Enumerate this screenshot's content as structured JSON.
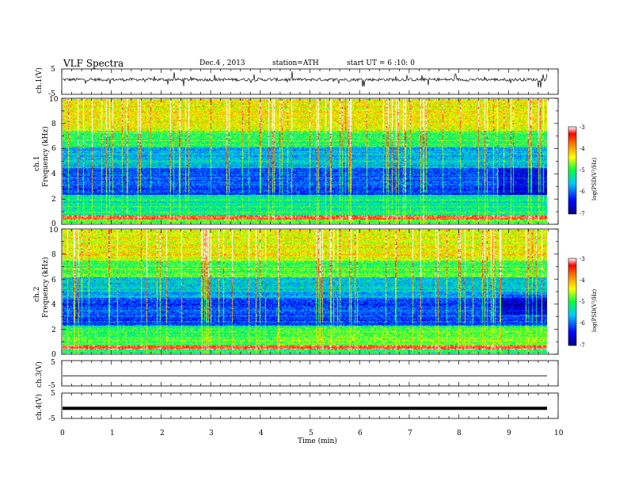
{
  "header": {
    "title": "VLF  Spectra",
    "date": "Dec.4  , 2013",
    "station": "station=ATH",
    "start": "start  UT  =   6  :10: 0"
  },
  "chart_data": [
    {
      "type": "line",
      "panel": "ch1-waveform",
      "ylabel": "ch.1(V)",
      "ylim": [
        -5,
        5
      ],
      "yticks": [
        "5",
        "-5"
      ],
      "xlim": [
        0,
        10
      ],
      "baseline_v": 0.8,
      "noise_v": 1.2
    },
    {
      "type": "heatmap",
      "panel": "ch1-spectrogram",
      "ylabel": [
        "ch.1",
        "Frequency  (kHz)"
      ],
      "ylim": [
        0,
        10
      ],
      "yticks": [
        "0",
        "2",
        "4",
        "6",
        "8",
        "10"
      ],
      "xlim": [
        0,
        9.8
      ],
      "colorbar": {
        "label": "log(PSD(V²/Hz)",
        "range": [
          -7,
          -3
        ],
        "ticks": [
          "-3",
          "-4",
          "-5",
          "-6",
          "-7"
        ]
      }
    },
    {
      "type": "heatmap",
      "panel": "ch2-spectrogram",
      "ylabel": [
        "ch.2",
        "Frequency  (kHz)"
      ],
      "ylim": [
        0,
        10
      ],
      "yticks": [
        "0",
        "2",
        "4",
        "6",
        "8",
        "10"
      ],
      "xlim": [
        0,
        9.8
      ],
      "colorbar": {
        "label": "log(PSD(V²/Hz)",
        "range": [
          -7,
          -3
        ],
        "ticks": [
          "-3",
          "-4",
          "-5",
          "-6",
          "-7"
        ]
      }
    },
    {
      "type": "line",
      "panel": "ch3-waveform",
      "ylabel": "ch.3(V)",
      "ylim": [
        -5,
        5
      ],
      "yticks": [
        "5",
        "-5"
      ],
      "xlim": [
        0,
        9.8
      ],
      "baseline_v": -1.0
    },
    {
      "type": "line",
      "panel": "ch4-waveform",
      "ylabel": "ch.4(V)",
      "ylim": [
        -5,
        5
      ],
      "yticks": [
        "5",
        "-5"
      ],
      "xlim": [
        0,
        9.8
      ],
      "baseline_v": -1.0
    }
  ],
  "xaxis": {
    "label": "Time  (min)",
    "ticks": [
      "0",
      "1",
      "2",
      "3",
      "4",
      "5",
      "6",
      "7",
      "8",
      "9",
      "10"
    ]
  }
}
